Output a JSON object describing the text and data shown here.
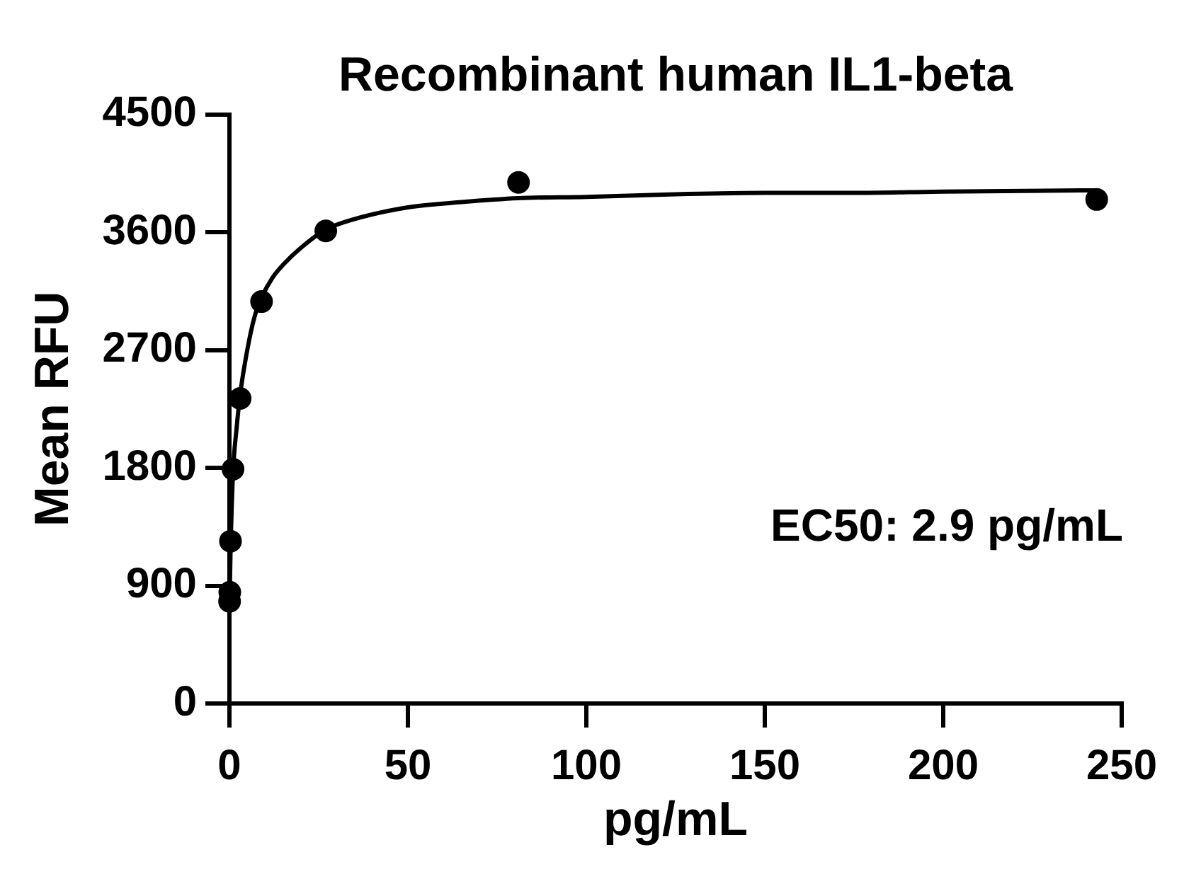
{
  "chart_data": {
    "type": "scatter",
    "title": "Recombinant human IL1-beta",
    "xlabel": "pg/mL",
    "ylabel": "Mean RFU",
    "annotations": [
      "EC50: 2.9 pg/mL"
    ],
    "series": [
      {
        "type": "scatter",
        "color": "#000000",
        "x": [
          0.04,
          0.1,
          0.3,
          1,
          3,
          9,
          27,
          81,
          243
        ],
        "values": [
          780,
          850,
          1240,
          1790,
          2330,
          3070,
          3610,
          3980,
          3850
        ]
      },
      {
        "type": "line",
        "color": "#000000",
        "marker": "none",
        "x": [
          0.04,
          0.1,
          0.3,
          1,
          2,
          3,
          5,
          7,
          9,
          12,
          15,
          20,
          27,
          35,
          50,
          65,
          81,
          100,
          125,
          150,
          175,
          200,
          243
        ],
        "values": [
          790,
          850,
          1150,
          1760,
          2100,
          2360,
          2700,
          2950,
          3100,
          3250,
          3350,
          3480,
          3620,
          3700,
          3790,
          3830,
          3860,
          3870,
          3890,
          3900,
          3900,
          3910,
          3920
        ]
      }
    ],
    "xlim": [
      0,
      250
    ],
    "xticks": [
      0,
      50,
      100,
      150,
      200,
      250
    ],
    "ylim": [
      0,
      4500
    ],
    "yticks": [
      0,
      900,
      1800,
      2700,
      3600,
      4500
    ],
    "marker": "circle",
    "legend": false
  }
}
